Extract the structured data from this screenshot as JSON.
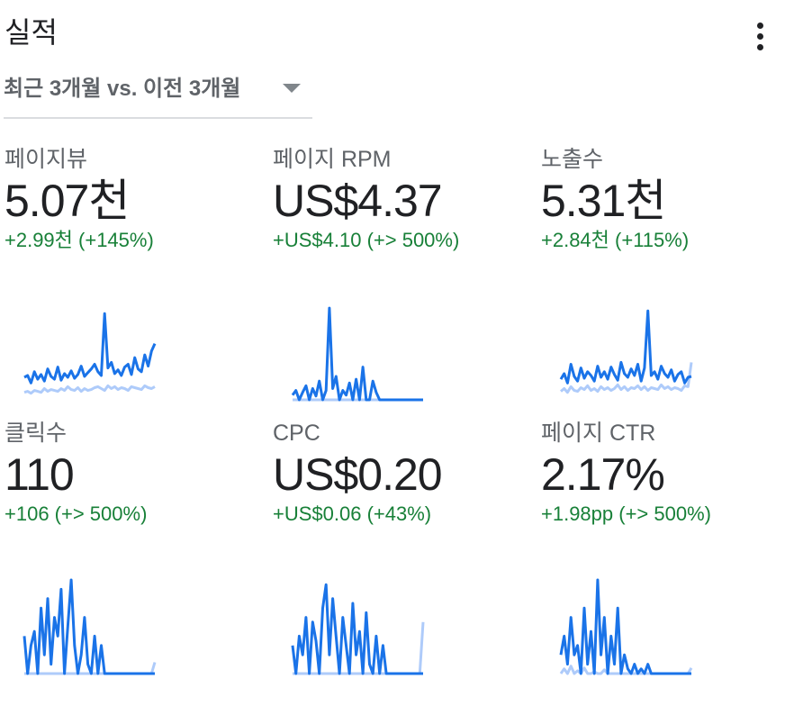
{
  "header": {
    "title": "실적",
    "menu_icon": "more-vert-icon",
    "range_label": "최근 3개월 vs. 이전 3개월",
    "range_icon": "dropdown-caret-icon"
  },
  "colors": {
    "current": "#1a73e8",
    "previous": "#aecbfa",
    "positive": "#188038"
  },
  "metrics": [
    {
      "label": "페이지뷰",
      "value": "5.07천",
      "delta": "+2.99천 (+145%)",
      "chart_data": {
        "type": "line",
        "series": [
          {
            "values": [
              8,
              9,
              7,
              10,
              9,
              8,
              12,
              9,
              11,
              10,
              9,
              12,
              10,
              14,
              11,
              10,
              13,
              9,
              12,
              10,
              11,
              13,
              14,
              12,
              10,
              15,
              12,
              14,
              11,
              13,
              12,
              10,
              14,
              13,
              12,
              11,
              15,
              13,
              12,
              14
            ]
          },
          {
            "values": [
              24,
              26,
              18,
              30,
              22,
              27,
              20,
              33,
              25,
              22,
              35,
              21,
              28,
              24,
              31,
              23,
              27,
              36,
              25,
              29,
              33,
              38,
              30,
              26,
              92,
              34,
              40,
              28,
              32,
              26,
              35,
              38,
              27,
              45,
              33,
              30,
              48,
              36,
              52,
              60
            ]
          }
        ],
        "ylim": [
          0,
          100
        ]
      }
    },
    {
      "label": "페이지 RPM",
      "value": "US$4.37",
      "delta": "+US$4.10 (+> 500%)",
      "chart_data": {
        "type": "line",
        "series": [
          {
            "values": [
              0,
              0,
              0,
              0,
              0,
              0,
              0,
              0,
              0,
              0,
              0,
              0,
              0,
              0,
              0,
              0,
              0,
              0,
              0,
              0,
              0,
              0,
              0,
              0,
              0,
              0,
              0,
              0,
              0,
              0,
              0,
              0,
              0,
              0,
              0,
              0,
              0,
              0,
              0,
              0
            ]
          },
          {
            "values": [
              5,
              10,
              0,
              8,
              15,
              0,
              12,
              4,
              20,
              0,
              10,
              98,
              12,
              25,
              0,
              10,
              5,
              18,
              0,
              22,
              0,
              35,
              0,
              0,
              20,
              8,
              0,
              0,
              0,
              0,
              0,
              0,
              0,
              0,
              0,
              0,
              0,
              0,
              0,
              0
            ]
          }
        ],
        "ylim": [
          0,
          100
        ]
      }
    },
    {
      "label": "노출수",
      "value": "5.31천",
      "delta": "+2.84천 (+115%)",
      "chart_data": {
        "type": "line",
        "series": [
          {
            "values": [
              9,
              12,
              8,
              14,
              10,
              9,
              13,
              11,
              15,
              10,
              12,
              9,
              14,
              11,
              13,
              10,
              12,
              16,
              11,
              14,
              10,
              13,
              12,
              15,
              11,
              14,
              10,
              13,
              12,
              11,
              16,
              12,
              14,
              11,
              13,
              12,
              10,
              15,
              14,
              40
            ]
          },
          {
            "values": [
              22,
              28,
              18,
              38,
              25,
              20,
              34,
              23,
              30,
              26,
              20,
              36,
              24,
              30,
              22,
              35,
              27,
              21,
              40,
              28,
              24,
              33,
              26,
              38,
              20,
              34,
              95,
              26,
              30,
              22,
              36,
              28,
              24,
              32,
              20,
              27,
              30,
              18,
              24,
              25
            ]
          }
        ],
        "ylim": [
          0,
          100
        ]
      }
    },
    {
      "label": "클릭수",
      "value": "110",
      "delta": "+106 (+> 500%)",
      "chart_data": {
        "type": "line",
        "series": [
          {
            "values": [
              0,
              0,
              0,
              0,
              0,
              0,
              0,
              0,
              0,
              0,
              0,
              0,
              0,
              0,
              0,
              0,
              0,
              0,
              0,
              0,
              0,
              0,
              0,
              0,
              0,
              0,
              0,
              0,
              0,
              0,
              0,
              0,
              0,
              0,
              0,
              0,
              0,
              0,
              0,
              12
            ]
          },
          {
            "values": [
              40,
              0,
              30,
              45,
              0,
              70,
              20,
              80,
              10,
              60,
              40,
              90,
              0,
              50,
              100,
              30,
              0,
              20,
              60,
              10,
              0,
              40,
              0,
              30,
              0,
              0,
              0,
              0,
              0,
              0,
              0,
              0,
              0,
              0,
              0,
              0,
              0,
              0,
              0,
              0
            ]
          }
        ],
        "ylim": [
          0,
          100
        ]
      }
    },
    {
      "label": "CPC",
      "value": "US$0.20",
      "delta": "+US$0.06 (+43%)",
      "chart_data": {
        "type": "line",
        "series": [
          {
            "values": [
              0,
              0,
              0,
              0,
              0,
              0,
              0,
              0,
              0,
              0,
              0,
              0,
              0,
              0,
              0,
              0,
              0,
              0,
              0,
              0,
              0,
              0,
              0,
              0,
              0,
              0,
              0,
              0,
              0,
              0,
              0,
              0,
              0,
              0,
              0,
              0,
              0,
              0,
              0,
              55
            ]
          },
          {
            "values": [
              30,
              0,
              40,
              20,
              60,
              0,
              55,
              35,
              0,
              70,
              95,
              20,
              80,
              40,
              0,
              60,
              30,
              0,
              75,
              20,
              45,
              0,
              65,
              10,
              0,
              40,
              0,
              30,
              0,
              0,
              0,
              0,
              0,
              0,
              0,
              0,
              0,
              0,
              0,
              0
            ]
          }
        ],
        "ylim": [
          0,
          100
        ]
      }
    },
    {
      "label": "페이지 CTR",
      "value": "2.17%",
      "delta": "+1.98pp (+> 500%)",
      "chart_data": {
        "type": "line",
        "series": [
          {
            "values": [
              0,
              5,
              0,
              8,
              0,
              3,
              0,
              6,
              0,
              0,
              2,
              0,
              0,
              4,
              0,
              0,
              0,
              0,
              0,
              0,
              0,
              0,
              0,
              0,
              0,
              0,
              0,
              0,
              0,
              0,
              0,
              0,
              0,
              0,
              0,
              0,
              0,
              0,
              0,
              6
            ]
          },
          {
            "values": [
              20,
              40,
              10,
              60,
              20,
              30,
              0,
              70,
              10,
              45,
              0,
              100,
              20,
              60,
              0,
              40,
              10,
              70,
              0,
              20,
              5,
              0,
              10,
              0,
              5,
              0,
              10,
              0,
              0,
              0,
              0,
              0,
              0,
              0,
              0,
              0,
              0,
              0,
              0,
              0
            ]
          }
        ],
        "ylim": [
          0,
          100
        ]
      }
    }
  ]
}
